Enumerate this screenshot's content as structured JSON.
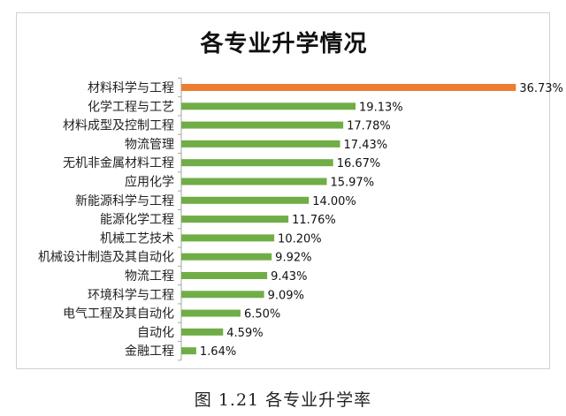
{
  "caption": "图 1.21 各专业升学率",
  "chart_data": {
    "type": "bar",
    "orientation": "horizontal",
    "title": "各专业升学情况",
    "xlabel": "",
    "ylabel": "",
    "xlim": [
      0,
      37
    ],
    "grid": false,
    "legend": "none",
    "value_format": "percent",
    "categories": [
      "材料科学与工程",
      "化学工程与工艺",
      "材料成型及控制工程",
      "物流管理",
      "无机非金属材料工程",
      "应用化学",
      "新能源科学与工程",
      "能源化学工程",
      "机械工艺技术",
      "机械设计制造及其自动化",
      "物流工程",
      "环境科学与工程",
      "电气工程及其自动化",
      "自动化",
      "金融工程"
    ],
    "values": [
      36.73,
      19.13,
      17.78,
      17.43,
      16.67,
      15.97,
      14.0,
      11.76,
      10.2,
      9.92,
      9.43,
      9.09,
      6.5,
      4.59,
      1.64
    ],
    "data_labels": [
      "36.73%",
      "19.13%",
      "17.78%",
      "17.43%",
      "16.67%",
      "15.97%",
      "14.00%",
      "11.76%",
      "10.20%",
      "9.92%",
      "9.43%",
      "9.09%",
      "6.50%",
      "4.59%",
      "1.64%"
    ],
    "colors": {
      "highlight": "#ed7d31",
      "default": "#70ad47",
      "axis": "#a6a6a6"
    },
    "highlight_index": 0
  }
}
